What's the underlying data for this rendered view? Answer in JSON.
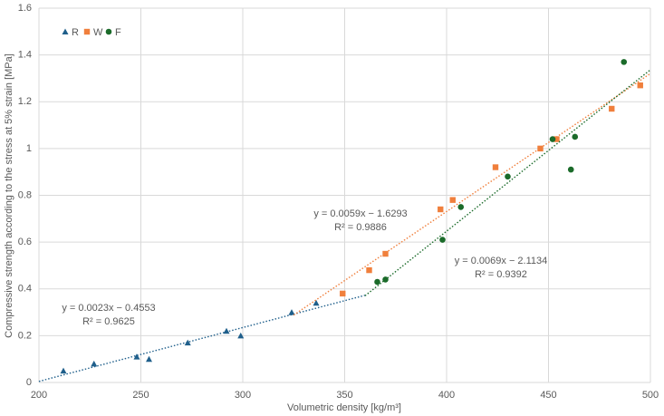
{
  "chart_data": {
    "type": "scatter",
    "x_label": "Volumetric density [kg/m³]",
    "y_label": "Compressive strength  according to the stress at 5% strain [MPa]",
    "xlim": [
      200,
      500
    ],
    "xticks": [
      200,
      250,
      300,
      350,
      400,
      450,
      500
    ],
    "ylim": [
      0,
      1.6
    ],
    "yticks": [
      0,
      0.2,
      0.4,
      0.6,
      0.8,
      1,
      1.2,
      1.4,
      1.6
    ],
    "grid": true,
    "legend": "top-left",
    "series": [
      {
        "name": "R",
        "color": "#1f5f8b",
        "marker": "triangle",
        "x": [
          212,
          227,
          248,
          254,
          273,
          292,
          299,
          324,
          336
        ],
        "values": [
          0.05,
          0.08,
          0.11,
          0.1,
          0.17,
          0.22,
          0.2,
          0.3,
          0.34
        ],
        "trendline": {
          "slope": 0.0023,
          "intercept": -0.4553,
          "range": [
            200,
            360
          ],
          "equation": "y = 0.0023x − 0.4553",
          "r2": "R² = 0.9625"
        }
      },
      {
        "name": "W",
        "color": "#f07f3c",
        "marker": "square",
        "x": [
          349,
          362,
          370,
          397,
          403,
          424,
          446,
          454,
          481,
          495
        ],
        "values": [
          0.38,
          0.48,
          0.55,
          0.74,
          0.78,
          0.92,
          1.0,
          1.04,
          1.17,
          1.27
        ],
        "trendline": {
          "slope": 0.0059,
          "intercept": -1.6293,
          "range": [
            325,
            500
          ],
          "equation": "y = 0.0059x − 1.6293",
          "r2": "R² = 0.9886"
        }
      },
      {
        "name": "F",
        "color": "#1b6b2a",
        "marker": "circle",
        "x": [
          366,
          370,
          398,
          407,
          430,
          452,
          461,
          463,
          487
        ],
        "values": [
          0.43,
          0.44,
          0.61,
          0.75,
          0.88,
          1.04,
          0.91,
          1.05,
          1.37
        ],
        "trendline": {
          "slope": 0.0069,
          "intercept": -2.1134,
          "range": [
            360,
            500
          ],
          "equation": "y = 0.0069x − 2.1134",
          "r2": "R² = 0.9392"
        }
      }
    ]
  }
}
